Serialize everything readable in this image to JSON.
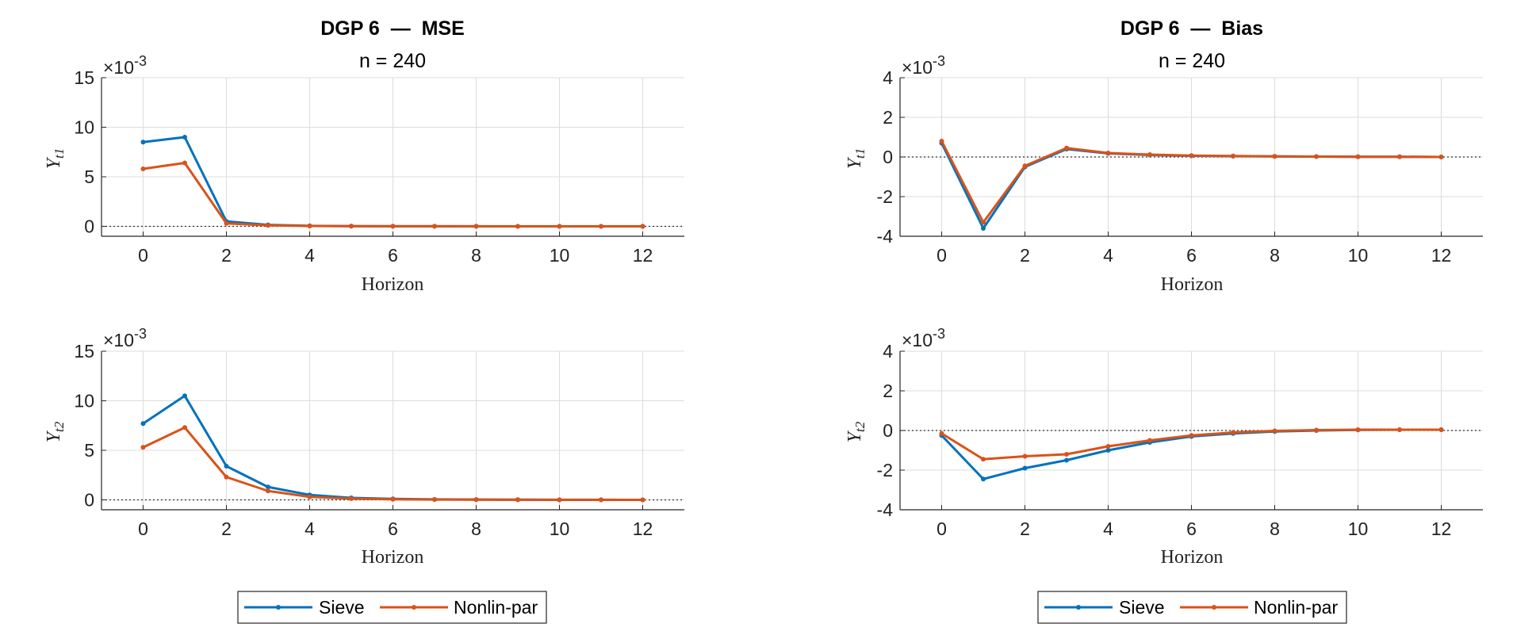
{
  "colors": {
    "sieve": "#0072BD",
    "nonlin": "#D95319",
    "grid": "#dcdcdc",
    "axis": "#262626"
  },
  "chart_data": [
    {
      "type": "line",
      "title": "DGP 6  —  MSE",
      "subtitle": "n = 240",
      "ylabel_main": "Y",
      "ylabel_sub": "t1",
      "xlabel": "Horizon",
      "exponent_label": "×10",
      "exponent_power": "-3",
      "xlim": [
        -1,
        13
      ],
      "ylim": [
        -1,
        15
      ],
      "xticks": [
        0,
        2,
        4,
        6,
        8,
        10,
        12
      ],
      "yticks": [
        0,
        5,
        10,
        15
      ],
      "x": [
        0,
        1,
        2,
        3,
        4,
        5,
        6,
        7,
        8,
        9,
        10,
        11,
        12
      ],
      "series": [
        {
          "name": "Sieve",
          "values": [
            8.5,
            9.0,
            0.5,
            0.15,
            0.05,
            0.02,
            0.01,
            0.01,
            0.01,
            0.0,
            0.0,
            0.0,
            0.0
          ]
        },
        {
          "name": "Nonlin-par",
          "values": [
            5.8,
            6.4,
            0.3,
            0.1,
            0.04,
            0.02,
            0.01,
            0.01,
            0.0,
            0.0,
            0.0,
            0.0,
            0.0
          ]
        }
      ]
    },
    {
      "type": "line",
      "title": "DGP 6  —  Bias",
      "subtitle": "n = 240",
      "ylabel_main": "Y",
      "ylabel_sub": "t1",
      "xlabel": "Horizon",
      "exponent_label": "×10",
      "exponent_power": "-3",
      "xlim": [
        -1,
        13
      ],
      "ylim": [
        -4,
        4
      ],
      "xticks": [
        0,
        2,
        4,
        6,
        8,
        10,
        12
      ],
      "yticks": [
        -4,
        -2,
        0,
        2,
        4
      ],
      "x": [
        0,
        1,
        2,
        3,
        4,
        5,
        6,
        7,
        8,
        9,
        10,
        11,
        12
      ],
      "series": [
        {
          "name": "Sieve",
          "values": [
            0.7,
            -3.6,
            -0.5,
            0.4,
            0.18,
            0.1,
            0.06,
            0.04,
            0.03,
            0.02,
            0.01,
            0.01,
            0.0
          ]
        },
        {
          "name": "Nonlin-par",
          "values": [
            0.8,
            -3.3,
            -0.45,
            0.45,
            0.2,
            0.12,
            0.07,
            0.05,
            0.03,
            0.02,
            0.01,
            0.01,
            0.0
          ]
        }
      ]
    },
    {
      "type": "line",
      "title": "",
      "subtitle": "",
      "ylabel_main": "Y",
      "ylabel_sub": "t2",
      "xlabel": "Horizon",
      "exponent_label": "×10",
      "exponent_power": "-3",
      "xlim": [
        -1,
        13
      ],
      "ylim": [
        -1,
        15
      ],
      "xticks": [
        0,
        2,
        4,
        6,
        8,
        10,
        12
      ],
      "yticks": [
        0,
        5,
        10,
        15
      ],
      "x": [
        0,
        1,
        2,
        3,
        4,
        5,
        6,
        7,
        8,
        9,
        10,
        11,
        12
      ],
      "series": [
        {
          "name": "Sieve",
          "values": [
            7.7,
            10.5,
            3.4,
            1.3,
            0.5,
            0.2,
            0.1,
            0.05,
            0.03,
            0.02,
            0.01,
            0.01,
            0.0
          ]
        },
        {
          "name": "Nonlin-par",
          "values": [
            5.3,
            7.3,
            2.3,
            0.9,
            0.3,
            0.12,
            0.06,
            0.03,
            0.02,
            0.01,
            0.0,
            0.0,
            0.0
          ]
        }
      ]
    },
    {
      "type": "line",
      "title": "",
      "subtitle": "",
      "ylabel_main": "Y",
      "ylabel_sub": "t2",
      "xlabel": "Horizon",
      "exponent_label": "×10",
      "exponent_power": "-3",
      "xlim": [
        -1,
        13
      ],
      "ylim": [
        -4,
        4
      ],
      "xticks": [
        0,
        2,
        4,
        6,
        8,
        10,
        12
      ],
      "yticks": [
        -4,
        -2,
        0,
        2,
        4
      ],
      "x": [
        0,
        1,
        2,
        3,
        4,
        5,
        6,
        7,
        8,
        9,
        10,
        11,
        12
      ],
      "series": [
        {
          "name": "Sieve",
          "values": [
            -0.25,
            -2.45,
            -1.9,
            -1.5,
            -1.0,
            -0.6,
            -0.3,
            -0.15,
            -0.05,
            0.0,
            0.03,
            0.04,
            0.04
          ]
        },
        {
          "name": "Nonlin-par",
          "values": [
            -0.15,
            -1.45,
            -1.3,
            -1.2,
            -0.8,
            -0.5,
            -0.25,
            -0.1,
            -0.02,
            0.02,
            0.04,
            0.04,
            0.04
          ]
        }
      ]
    }
  ],
  "legends": [
    {
      "items": [
        "Sieve",
        "Nonlin-par"
      ]
    },
    {
      "items": [
        "Sieve",
        "Nonlin-par"
      ]
    }
  ]
}
